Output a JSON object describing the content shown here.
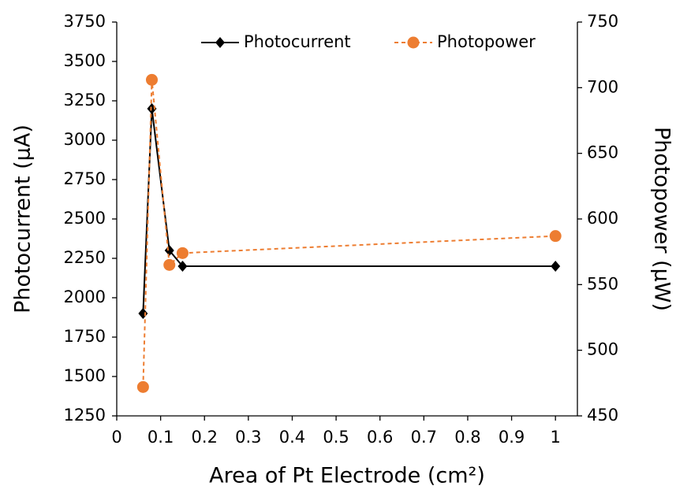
{
  "chart_data": {
    "type": "line",
    "xlabel": "Area of Pt Electrode (cm²)",
    "ylabel": "Photocurrent (µA)",
    "y2label": "Photopower (µW)",
    "x": [
      0.06,
      0.08,
      0.12,
      0.15,
      1
    ],
    "series": [
      {
        "name": "Photocurrent",
        "color": "#000000",
        "marker": "diamond",
        "linestyle": "solid",
        "values": [
          1900,
          3200,
          2300,
          2200,
          2200
        ]
      },
      {
        "name": "Photopower",
        "color": "#ed7d31",
        "marker": "circle",
        "linestyle": "dashed",
        "axis": "y2",
        "values": [
          472,
          706,
          565,
          574,
          587
        ]
      }
    ],
    "xlim": [
      0,
      1.05
    ],
    "xticks": [
      0,
      0.1,
      0.2,
      0.3,
      0.4,
      0.5,
      0.6,
      0.7,
      0.8,
      0.9,
      1
    ],
    "ylim": [
      1250,
      3750
    ],
    "yticks": [
      1250,
      1500,
      1750,
      2000,
      2250,
      2500,
      2750,
      3000,
      3250,
      3500,
      3750
    ],
    "y2lim": [
      450,
      750
    ],
    "y2ticks": [
      450,
      500,
      550,
      600,
      650,
      700,
      750
    ],
    "grid": false,
    "legend": "top"
  }
}
